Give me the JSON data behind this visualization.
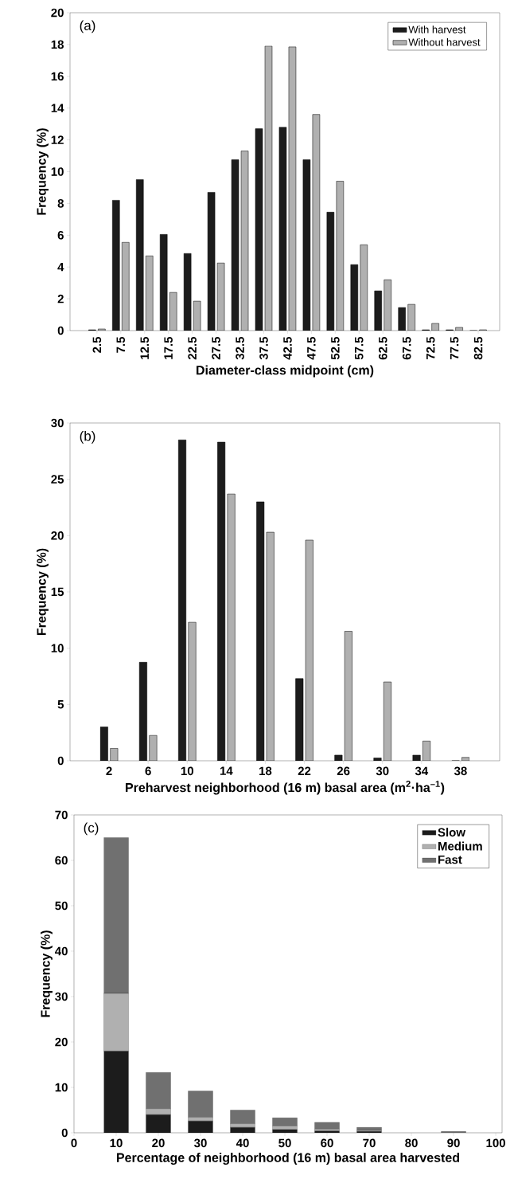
{
  "chart_data": [
    {
      "type": "bar",
      "annotations": [
        "(a)"
      ],
      "xlabel": "Diameter-class midpoint (cm)",
      "ylabel": "Frequency (%)",
      "categories": [
        "2.5",
        "7.5",
        "12.5",
        "17.5",
        "22.5",
        "27.5",
        "32.5",
        "37.5",
        "42.5",
        "47.5",
        "52.5",
        "57.5",
        "62.5",
        "67.5",
        "72.5",
        "77.5",
        "82.5"
      ],
      "series": [
        {
          "name": "With harvest",
          "color": "#1c1c1c",
          "values": [
            0.05,
            8.2,
            9.5,
            6.05,
            4.85,
            8.7,
            10.75,
            12.7,
            12.8,
            10.75,
            7.45,
            4.15,
            2.5,
            1.45,
            0.05,
            0.05,
            0
          ]
        },
        {
          "name": "Without harvest",
          "color": "#b0b0b0",
          "values": [
            0.1,
            5.55,
            4.7,
            2.4,
            1.85,
            4.25,
            11.3,
            17.9,
            17.85,
            13.6,
            9.4,
            5.4,
            3.2,
            1.65,
            0.45,
            0.2,
            0.05
          ]
        }
      ],
      "ylim": [
        0,
        20
      ],
      "yticks": [
        0,
        2,
        4,
        6,
        8,
        10,
        12,
        14,
        16,
        18,
        20
      ],
      "legend": "top right"
    },
    {
      "type": "bar",
      "annotations": [
        "(b)"
      ],
      "xlabel": "Preharvest neighborhood (16 m) basal area (m$^{2}$·ha$^{–1}$)",
      "ylabel": "Frequency (%)",
      "categories": [
        "2",
        "6",
        "10",
        "14",
        "18",
        "22",
        "26",
        "30",
        "34",
        "38"
      ],
      "series": [
        {
          "color": "#1c1c1c",
          "values": [
            3.0,
            8.75,
            28.5,
            28.3,
            23.0,
            7.3,
            0.5,
            0.25,
            0.5,
            0
          ]
        },
        {
          "color": "#b0b0b0",
          "values": [
            1.1,
            2.25,
            12.3,
            23.7,
            20.3,
            19.6,
            11.5,
            7.0,
            1.75,
            0.3
          ]
        }
      ],
      "ylim": [
        0,
        30
      ],
      "yticks": [
        0,
        5,
        10,
        15,
        20,
        25,
        30
      ]
    },
    {
      "type": "bar",
      "stacked": true,
      "annotations": [
        "(c)"
      ],
      "xlabel": "Percentage of neighborhood (16 m) basal area harvested",
      "ylabel": "Frequency (%)",
      "x": [
        10,
        20,
        30,
        40,
        50,
        60,
        70,
        80,
        90
      ],
      "series": [
        {
          "name": "Slow",
          "color": "#1c1c1c",
          "values": [
            18,
            4,
            2.6,
            1.2,
            0.7,
            0.4,
            0.3,
            null,
            null
          ]
        },
        {
          "name": "Medium",
          "color": "#b0b0b0",
          "values": [
            12.7,
            1.3,
            0.8,
            0.8,
            0.8,
            0.4,
            0.2,
            null,
            null
          ]
        },
        {
          "name": "Fast",
          "color": "#707070",
          "values": [
            34.3,
            8.0,
            5.8,
            3.0,
            1.8,
            1.5,
            0.7,
            null,
            0.3
          ]
        }
      ],
      "xlim": [
        0,
        101.5
      ],
      "xticks": [
        0,
        10,
        20,
        30,
        40,
        50,
        60,
        70,
        80,
        90,
        100
      ],
      "ylim": [
        0,
        70
      ],
      "yticks": [
        0,
        10,
        20,
        30,
        40,
        50,
        60,
        70
      ],
      "legend": "top right"
    }
  ]
}
